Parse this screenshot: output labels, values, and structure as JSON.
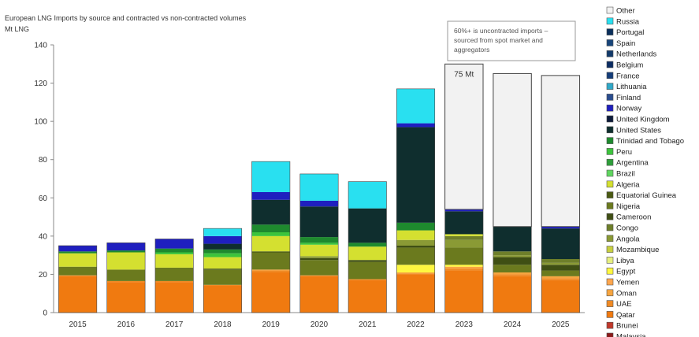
{
  "chart_data": {
    "type": "bar",
    "stacked": true,
    "title": "European LNG Imports by source and contracted vs non-contracted volumes",
    "ylabel": "Mt LNG",
    "ylim": [
      0,
      140
    ],
    "yticks": [
      0,
      20,
      40,
      60,
      80,
      100,
      120,
      140
    ],
    "grid": false,
    "legend_position": "right",
    "categories": [
      "2015",
      "2016",
      "2017",
      "2018",
      "2019",
      "2020",
      "2021",
      "2022",
      "2023",
      "2024",
      "2025"
    ],
    "annotation": "60%+ is uncontracted imports – sourced from spot market and aggregators",
    "bar_label": {
      "category": "2023",
      "text": "75 Mt"
    },
    "legend": [
      "Other",
      "Russia",
      "Portugal",
      "Spain",
      "Netherlands",
      "Belgium",
      "France",
      "Lithuania",
      "Finland",
      "Norway",
      "United Kingdom",
      "United States",
      "Trinidad and Tobago",
      "Peru",
      "Argentina",
      "Brazil",
      "Algeria",
      "Equatorial Guinea",
      "Nigeria",
      "Cameroon",
      "Congo",
      "Angola",
      "Mozambique",
      "Libya",
      "Egypt",
      "Yemen",
      "Oman",
      "UAE",
      "Qatar",
      "Brunei",
      "Malaysia"
    ],
    "colors": {
      "Other": "#f2f2f2",
      "Russia": "#29e0f0",
      "Portugal": "#0a2f5c",
      "Spain": "#17447a",
      "Netherlands": "#123a6b",
      "Belgium": "#0b2c63",
      "France": "#143d7a",
      "Lithuania": "#2fa8c8",
      "Finland": "#2a4d8f",
      "Norway": "#1f1fbf",
      "United Kingdom": "#0c1b3a",
      "United States": "#0f2e2e",
      "Trinidad and Tobago": "#1e8a2e",
      "Peru": "#3cc43c",
      "Argentina": "#2e9e3a",
      "Brazil": "#5fd65f",
      "Algeria": "#d4e030",
      "Equatorial Guinea": "#4a5a12",
      "Nigeria": "#6b7a1e",
      "Cameroon": "#3f4f14",
      "Congo": "#6e7f2a",
      "Angola": "#8a9a35",
      "Mozambique": "#c8d040",
      "Libya": "#e6ef80",
      "Egypt": "#fff740",
      "Yemen": "#ffa64d",
      "Oman": "#f7a540",
      "UAE": "#f08a24",
      "Qatar": "#f07a10",
      "Brunei": "#c0392b",
      "Malaysia": "#8b1a1a"
    },
    "series": [
      {
        "name": "Qatar",
        "values": [
          19,
          16,
          16,
          14,
          21,
          19,
          17,
          20,
          22,
          19,
          17
        ]
      },
      {
        "name": "UAE",
        "values": [
          0.5,
          0.5,
          0.5,
          0.5,
          1,
          0.5,
          0.5,
          0.5,
          1,
          1,
          1
        ]
      },
      {
        "name": "Oman",
        "values": [
          0,
          0,
          0,
          0,
          0.5,
          0,
          0,
          0.5,
          1,
          1,
          1
        ]
      },
      {
        "name": "Egypt",
        "values": [
          0,
          0,
          0,
          0,
          0,
          0,
          0,
          4,
          1,
          0,
          0
        ]
      },
      {
        "name": "Nigeria",
        "values": [
          4.5,
          6,
          7,
          8,
          9,
          8,
          9,
          9,
          9,
          4,
          3
        ]
      },
      {
        "name": "Cameroon",
        "values": [
          0,
          0,
          0,
          0.5,
          0.5,
          1,
          1,
          1,
          0,
          4,
          3
        ]
      },
      {
        "name": "Angola",
        "values": [
          0,
          0,
          0,
          0,
          0,
          1,
          0,
          3,
          4,
          1,
          1
        ]
      },
      {
        "name": "Congo",
        "values": [
          0,
          0,
          0,
          0,
          0,
          0,
          0,
          0,
          2,
          2,
          2
        ]
      },
      {
        "name": "Algeria",
        "values": [
          7,
          9,
          7,
          6,
          8,
          6,
          7,
          5,
          1,
          0,
          0
        ]
      },
      {
        "name": "Peru",
        "values": [
          0,
          0,
          1,
          2,
          2,
          1,
          0,
          0,
          0,
          0,
          0
        ]
      },
      {
        "name": "Trinidad and Tobago",
        "values": [
          1,
          1,
          2,
          2,
          4,
          3,
          2,
          4,
          0,
          0,
          0
        ]
      },
      {
        "name": "United States",
        "values": [
          0,
          0,
          0,
          3,
          13,
          16,
          18,
          50,
          12,
          13,
          16
        ]
      },
      {
        "name": "Norway",
        "values": [
          3,
          4,
          5,
          4,
          4,
          3,
          0,
          2,
          1,
          0,
          1
        ]
      },
      {
        "name": "Russia",
        "values": [
          0,
          0,
          0,
          4,
          16,
          14,
          14,
          18,
          0,
          0,
          0
        ]
      },
      {
        "name": "Other",
        "values": [
          0,
          0,
          0,
          0,
          0,
          0,
          0,
          0,
          76,
          80,
          79
        ]
      }
    ]
  }
}
